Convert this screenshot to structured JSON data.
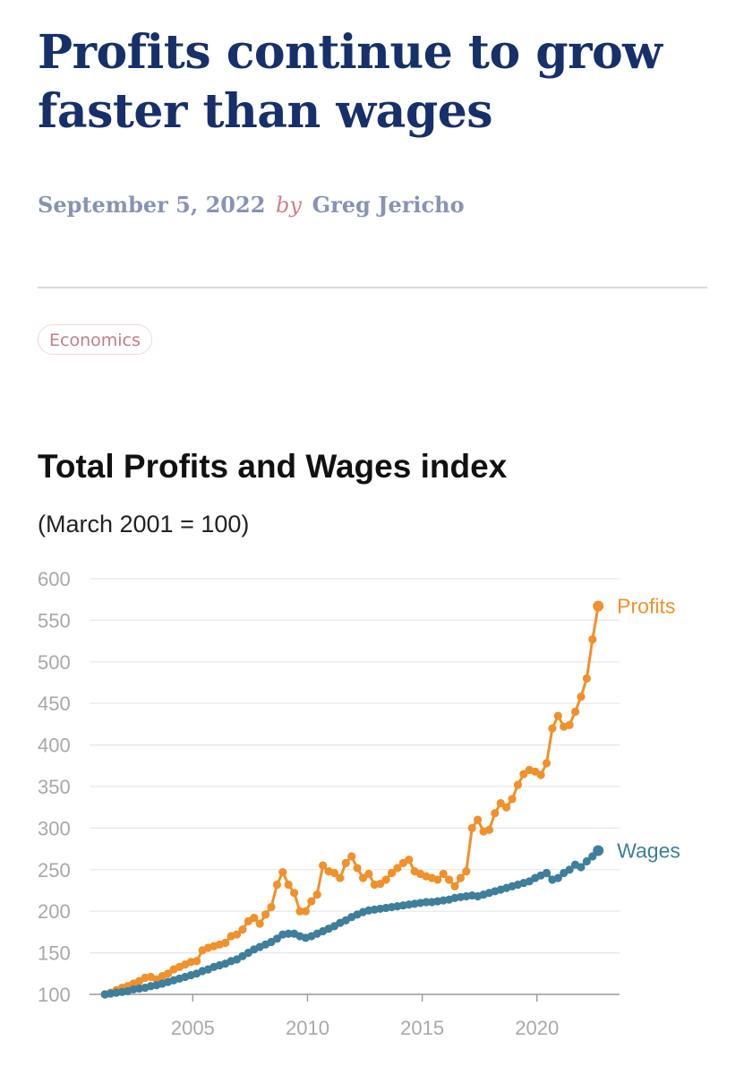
{
  "article": {
    "title": "Profits continue to grow faster than wages",
    "date": "September 5, 2022",
    "by": "by",
    "author": "Greg Jericho",
    "tag": "Economics"
  },
  "colors": {
    "profits": "#f0912b",
    "wages": "#3e7f9a",
    "grid": "#e6e6e6",
    "axis": "#9a9a9a"
  },
  "chart_data": {
    "type": "line",
    "title": "Total Profits and Wages index",
    "subtitle": "(March 2001 = 100)",
    "xlabel": "",
    "ylabel": "",
    "xlim": [
      2000.5,
      2023.6
    ],
    "ylim": [
      100,
      600
    ],
    "yticks": [
      100,
      150,
      200,
      250,
      300,
      350,
      400,
      450,
      500,
      550,
      600
    ],
    "xticks": [
      2005,
      2010,
      2015,
      2020
    ],
    "grid": true,
    "series": [
      {
        "name": "Profits",
        "color": "#f0912b",
        "points": [
          [
            2001.17,
            100
          ],
          [
            2001.42,
            102
          ],
          [
            2001.67,
            105
          ],
          [
            2001.92,
            108
          ],
          [
            2002.17,
            110
          ],
          [
            2002.42,
            113
          ],
          [
            2002.67,
            116
          ],
          [
            2002.92,
            120
          ],
          [
            2003.17,
            121
          ],
          [
            2003.42,
            118
          ],
          [
            2003.67,
            122
          ],
          [
            2003.92,
            125
          ],
          [
            2004.17,
            130
          ],
          [
            2004.42,
            133
          ],
          [
            2004.67,
            136
          ],
          [
            2004.92,
            139
          ],
          [
            2005.17,
            140
          ],
          [
            2005.42,
            153
          ],
          [
            2005.67,
            156
          ],
          [
            2005.92,
            158
          ],
          [
            2006.17,
            160
          ],
          [
            2006.42,
            162
          ],
          [
            2006.67,
            170
          ],
          [
            2006.92,
            172
          ],
          [
            2007.17,
            178
          ],
          [
            2007.42,
            188
          ],
          [
            2007.67,
            192
          ],
          [
            2007.92,
            185
          ],
          [
            2008.17,
            196
          ],
          [
            2008.42,
            205
          ],
          [
            2008.67,
            232
          ],
          [
            2008.92,
            247
          ],
          [
            2009.17,
            232
          ],
          [
            2009.42,
            222
          ],
          [
            2009.67,
            200
          ],
          [
            2009.92,
            200
          ],
          [
            2010.17,
            212
          ],
          [
            2010.42,
            220
          ],
          [
            2010.67,
            255
          ],
          [
            2010.92,
            248
          ],
          [
            2011.17,
            246
          ],
          [
            2011.42,
            240
          ],
          [
            2011.67,
            258
          ],
          [
            2011.92,
            266
          ],
          [
            2012.17,
            252
          ],
          [
            2012.42,
            240
          ],
          [
            2012.67,
            245
          ],
          [
            2012.92,
            232
          ],
          [
            2013.17,
            233
          ],
          [
            2013.42,
            238
          ],
          [
            2013.67,
            246
          ],
          [
            2013.92,
            252
          ],
          [
            2014.17,
            258
          ],
          [
            2014.42,
            262
          ],
          [
            2014.67,
            248
          ],
          [
            2014.92,
            245
          ],
          [
            2015.17,
            242
          ],
          [
            2015.42,
            240
          ],
          [
            2015.67,
            238
          ],
          [
            2015.92,
            245
          ],
          [
            2016.17,
            238
          ],
          [
            2016.42,
            230
          ],
          [
            2016.67,
            240
          ],
          [
            2016.92,
            248
          ],
          [
            2017.17,
            300
          ],
          [
            2017.42,
            310
          ],
          [
            2017.67,
            296
          ],
          [
            2017.92,
            298
          ],
          [
            2018.17,
            318
          ],
          [
            2018.42,
            330
          ],
          [
            2018.67,
            325
          ],
          [
            2018.92,
            335
          ],
          [
            2019.17,
            352
          ],
          [
            2019.42,
            365
          ],
          [
            2019.67,
            370
          ],
          [
            2019.92,
            368
          ],
          [
            2020.17,
            364
          ],
          [
            2020.42,
            378
          ],
          [
            2020.67,
            420
          ],
          [
            2020.92,
            435
          ],
          [
            2021.17,
            422
          ],
          [
            2021.42,
            424
          ],
          [
            2021.67,
            440
          ],
          [
            2021.92,
            458
          ],
          [
            2022.17,
            480
          ],
          [
            2022.42,
            527
          ],
          [
            2022.67,
            567
          ]
        ]
      },
      {
        "name": "Wages",
        "color": "#3e7f9a",
        "points": [
          [
            2001.17,
            100
          ],
          [
            2001.42,
            101
          ],
          [
            2001.67,
            102
          ],
          [
            2001.92,
            103
          ],
          [
            2002.17,
            104
          ],
          [
            2002.42,
            106
          ],
          [
            2002.67,
            107
          ],
          [
            2002.92,
            108
          ],
          [
            2003.17,
            110
          ],
          [
            2003.42,
            111
          ],
          [
            2003.67,
            113
          ],
          [
            2003.92,
            115
          ],
          [
            2004.17,
            117
          ],
          [
            2004.42,
            119
          ],
          [
            2004.67,
            121
          ],
          [
            2004.92,
            123
          ],
          [
            2005.17,
            125
          ],
          [
            2005.42,
            128
          ],
          [
            2005.67,
            130
          ],
          [
            2005.92,
            133
          ],
          [
            2006.17,
            135
          ],
          [
            2006.42,
            137
          ],
          [
            2006.67,
            140
          ],
          [
            2006.92,
            142
          ],
          [
            2007.17,
            146
          ],
          [
            2007.42,
            150
          ],
          [
            2007.67,
            154
          ],
          [
            2007.92,
            157
          ],
          [
            2008.17,
            160
          ],
          [
            2008.42,
            163
          ],
          [
            2008.67,
            167
          ],
          [
            2008.92,
            172
          ],
          [
            2009.17,
            173
          ],
          [
            2009.42,
            173
          ],
          [
            2009.67,
            170
          ],
          [
            2009.92,
            168
          ],
          [
            2010.17,
            170
          ],
          [
            2010.42,
            173
          ],
          [
            2010.67,
            176
          ],
          [
            2010.92,
            179
          ],
          [
            2011.17,
            182
          ],
          [
            2011.42,
            186
          ],
          [
            2011.67,
            189
          ],
          [
            2011.92,
            193
          ],
          [
            2012.17,
            196
          ],
          [
            2012.42,
            199
          ],
          [
            2012.67,
            201
          ],
          [
            2012.92,
            202
          ],
          [
            2013.17,
            203
          ],
          [
            2013.42,
            204
          ],
          [
            2013.67,
            205
          ],
          [
            2013.92,
            206
          ],
          [
            2014.17,
            207
          ],
          [
            2014.42,
            208
          ],
          [
            2014.67,
            209
          ],
          [
            2014.92,
            210
          ],
          [
            2015.17,
            211
          ],
          [
            2015.42,
            211
          ],
          [
            2015.67,
            212
          ],
          [
            2015.92,
            213
          ],
          [
            2016.17,
            214
          ],
          [
            2016.42,
            216
          ],
          [
            2016.67,
            217
          ],
          [
            2016.92,
            218
          ],
          [
            2017.17,
            219
          ],
          [
            2017.42,
            218
          ],
          [
            2017.67,
            220
          ],
          [
            2017.92,
            222
          ],
          [
            2018.17,
            224
          ],
          [
            2018.42,
            226
          ],
          [
            2018.67,
            228
          ],
          [
            2018.92,
            230
          ],
          [
            2019.17,
            232
          ],
          [
            2019.42,
            234
          ],
          [
            2019.67,
            236
          ],
          [
            2019.92,
            240
          ],
          [
            2020.17,
            243
          ],
          [
            2020.42,
            246
          ],
          [
            2020.67,
            238
          ],
          [
            2020.92,
            240
          ],
          [
            2021.17,
            246
          ],
          [
            2021.42,
            250
          ],
          [
            2021.67,
            256
          ],
          [
            2021.92,
            253
          ],
          [
            2022.17,
            260
          ],
          [
            2022.42,
            266
          ],
          [
            2022.67,
            273
          ]
        ]
      }
    ]
  }
}
